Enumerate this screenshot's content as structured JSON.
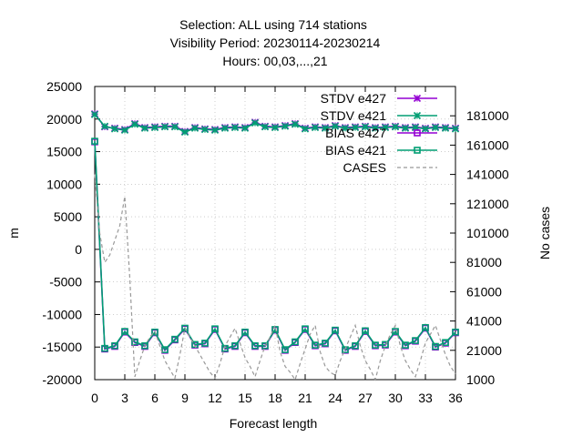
{
  "chart_data": {
    "type": "line",
    "title_lines": [
      "Selection: ALL using   714 stations",
      "Visibility   Period: 20230114-20230214",
      "Hours:  00,03,...,21"
    ],
    "xlabel": "Forecast length",
    "ylabel": "m",
    "y2label": "No cases",
    "xlim": [
      0,
      36
    ],
    "ylim": [
      -20000,
      25000
    ],
    "y2lim": [
      1000,
      201000
    ],
    "x_ticks": [
      0,
      3,
      6,
      9,
      12,
      15,
      18,
      21,
      24,
      27,
      30,
      33,
      36
    ],
    "y_ticks": [
      -20000,
      -15000,
      -10000,
      -5000,
      0,
      5000,
      10000,
      15000,
      20000,
      25000
    ],
    "y2_ticks": [
      1000,
      21000,
      41000,
      61000,
      81000,
      101000,
      121000,
      141000,
      161000,
      181000
    ],
    "y_tick_labels": [
      "-20000",
      "-15000",
      "-10000",
      "-5000",
      "0",
      "5000",
      "10000",
      "15000",
      "20000",
      "25000"
    ],
    "y2_tick_labels": [
      "1000",
      "21000",
      "41000",
      "61000",
      "81000",
      "101000",
      "121000",
      "141000",
      "161000",
      "181000"
    ],
    "x_tick_labels": [
      "0",
      "3",
      "6",
      "9",
      "12",
      "15",
      "18",
      "21",
      "24",
      "27",
      "30",
      "33",
      "36"
    ],
    "x": [
      0,
      1,
      2,
      3,
      4,
      5,
      6,
      7,
      8,
      9,
      10,
      11,
      12,
      13,
      14,
      15,
      16,
      17,
      18,
      19,
      20,
      21,
      22,
      23,
      24,
      25,
      26,
      27,
      28,
      29,
      30,
      31,
      32,
      33,
      34,
      35,
      36
    ],
    "series": [
      {
        "name": "STDV e427",
        "axis": "y",
        "color": "#9400d3",
        "marker": "x",
        "values": [
          20800,
          18800,
          18600,
          18400,
          19300,
          18700,
          18800,
          18900,
          18900,
          18100,
          18700,
          18500,
          18400,
          18700,
          18800,
          18700,
          19500,
          18900,
          18800,
          19000,
          19300,
          18600,
          18800,
          18700,
          19000,
          18700,
          18800,
          18900,
          18700,
          18800,
          18900,
          18700,
          18800,
          18600,
          18800,
          18700,
          18600
        ]
      },
      {
        "name": "STDV e421",
        "axis": "y",
        "color": "#009e73",
        "marker": "x",
        "values": [
          20700,
          18900,
          18500,
          18300,
          19200,
          18600,
          18700,
          18800,
          18800,
          18000,
          18600,
          18400,
          18300,
          18600,
          18700,
          18600,
          19400,
          18800,
          18700,
          18900,
          19200,
          18500,
          18700,
          18600,
          18900,
          18600,
          18700,
          18800,
          18600,
          18700,
          18800,
          18600,
          18700,
          18500,
          18700,
          18600,
          18500
        ]
      },
      {
        "name": "BIAS e427",
        "axis": "y",
        "color": "#9400d3",
        "marker": "square",
        "values": [
          16500,
          -15300,
          -14900,
          -12700,
          -14300,
          -14900,
          -12800,
          -15500,
          -13900,
          -12200,
          -14700,
          -14500,
          -12300,
          -15300,
          -14900,
          -12800,
          -14900,
          -14900,
          -12400,
          -15500,
          -14300,
          -12300,
          -14800,
          -14500,
          -12500,
          -15500,
          -14900,
          -12600,
          -14800,
          -14700,
          -12700,
          -14800,
          -14100,
          -12100,
          -15000,
          -14400,
          -12800
        ]
      },
      {
        "name": "BIAS e421",
        "axis": "y",
        "color": "#009e73",
        "marker": "square",
        "values": [
          16600,
          -15200,
          -14800,
          -12600,
          -14200,
          -14800,
          -12700,
          -15400,
          -13800,
          -12100,
          -14600,
          -14400,
          -12200,
          -15200,
          -14800,
          -12700,
          -14800,
          -14800,
          -12300,
          -15400,
          -14200,
          -12200,
          -14700,
          -14400,
          -12400,
          -15400,
          -14800,
          -12500,
          -14700,
          -14600,
          -12600,
          -14700,
          -14000,
          -12000,
          -14900,
          -14300,
          -12700
        ]
      },
      {
        "name": "CASES",
        "axis": "y2",
        "color": "#999999",
        "marker": "none",
        "dashed": true,
        "x": [
          0,
          0.5,
          1,
          1.5,
          2,
          2.5,
          3,
          3.5,
          4,
          4.5,
          5,
          5.5,
          6,
          6.5,
          7,
          7.5,
          8,
          8.5,
          9,
          9.5,
          10,
          10.5,
          11,
          11.5,
          12,
          12.5,
          13,
          13.5,
          14,
          14.5,
          15,
          15.5,
          16,
          16.5,
          17,
          17.5,
          18,
          18.5,
          19,
          19.5,
          20,
          20.5,
          21,
          21.5,
          22,
          22.5,
          23,
          23.5,
          24,
          24.5,
          25,
          25.5,
          26,
          26.5,
          27,
          27.5,
          28,
          28.5,
          29,
          29.5,
          30,
          30.5,
          31,
          31.5,
          32,
          32.5,
          33,
          33.5,
          34,
          34.5,
          35,
          35.5,
          36
        ],
        "values": [
          141000,
          101000,
          81000,
          86000,
          96000,
          106000,
          126000,
          70000,
          3000,
          14000,
          24000,
          30000,
          34000,
          24000,
          14000,
          8000,
          2000,
          18000,
          36000,
          30000,
          24000,
          18000,
          12000,
          6000,
          2000,
          12000,
          24000,
          30000,
          36000,
          26000,
          16000,
          10000,
          3000,
          14000,
          24000,
          30000,
          38000,
          20000,
          10000,
          6000,
          1000,
          12000,
          22000,
          32000,
          38000,
          20000,
          10000,
          6000,
          4000,
          14000,
          22000,
          30000,
          38000,
          24000,
          14000,
          8000,
          1000,
          14000,
          24000,
          32000,
          38000,
          24000,
          14000,
          8000,
          3000,
          14000,
          26000,
          32000,
          38000,
          28000,
          18000,
          10000,
          5000
        ]
      }
    ],
    "legend_position": "top-right",
    "grid": true
  }
}
